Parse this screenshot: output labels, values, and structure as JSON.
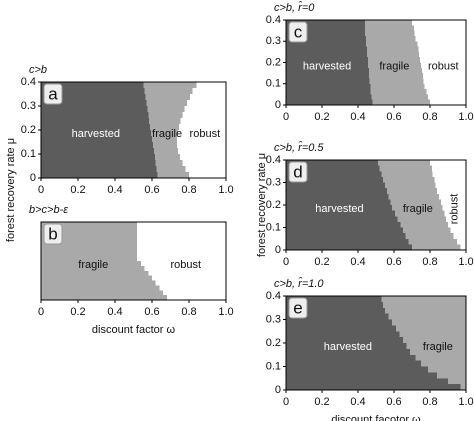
{
  "chart_data": [
    {
      "type": "region",
      "title": "c>b",
      "label": "a",
      "xlim": [
        0,
        1
      ],
      "ylim": [
        0,
        0.4
      ],
      "xticks": [
        0,
        0.2,
        0.4,
        0.6,
        0.8,
        {
          "value": 1,
          "label": "1.0"
        }
      ],
      "yticks": [
        0,
        0.1,
        0.2,
        0.3,
        0.4
      ],
      "ylabel": "forest recovery rate μ",
      "mu": [
        0,
        0.025,
        0.05,
        0.075,
        0.1,
        0.125,
        0.15,
        0.175,
        0.2,
        0.225,
        0.25,
        0.275,
        0.3,
        0.325,
        0.35,
        0.375
      ],
      "regions": [
        {
          "name": "harvested",
          "color": "#5c5c5c",
          "boundary": [
            0.63,
            0.625,
            0.62,
            0.615,
            0.61,
            0.605,
            0.6,
            0.595,
            0.59,
            0.585,
            0.58,
            0.575,
            0.57,
            0.565,
            0.56,
            0.555
          ]
        },
        {
          "name": "fragile",
          "color": "#a9a9a9",
          "boundary": [
            0.8,
            0.78,
            0.765,
            0.75,
            0.74,
            0.735,
            0.735,
            0.74,
            0.745,
            0.755,
            0.765,
            0.775,
            0.79,
            0.805,
            0.82,
            0.84
          ]
        },
        {
          "name": "robust",
          "color": "#ffffff"
        }
      ]
    },
    {
      "type": "region",
      "title": "b>c>b-ε",
      "label": "b",
      "xlim": [
        0,
        1
      ],
      "ylim": [
        0,
        0.4
      ],
      "xticks": [
        0,
        0.2,
        0.4,
        0.6,
        0.8,
        {
          "value": 1,
          "label": "1.0"
        }
      ],
      "xlabel": "discount factor ω",
      "mu": [
        0,
        0.025,
        0.05,
        0.075,
        0.1,
        0.125,
        0.15,
        0.175,
        0.2,
        0.225,
        0.25,
        0.275,
        0.3,
        0.325,
        0.35,
        0.375
      ],
      "regions": [
        {
          "name": "fragile",
          "color": "#a9a9a9",
          "boundary": [
            0.68,
            0.66,
            0.64,
            0.62,
            0.6,
            0.58,
            0.56,
            0.54,
            0.52,
            0.52,
            0.52,
            0.52,
            0.52,
            0.52,
            0.52,
            0.52
          ]
        },
        {
          "name": "robust",
          "color": "#ffffff"
        }
      ]
    },
    {
      "type": "region",
      "title": "c>b, r̂=0",
      "label": "c",
      "xlim": [
        0,
        1
      ],
      "ylim": [
        0,
        0.4
      ],
      "xticks": [
        0,
        0.2,
        0.4,
        0.6,
        0.8,
        {
          "value": 1,
          "label": "1.0"
        }
      ],
      "yticks": [
        0,
        0.1,
        0.2,
        0.3,
        0.4
      ],
      "ylabel": "forest recovery rate μ",
      "mu": [
        0,
        0.025,
        0.05,
        0.075,
        0.1,
        0.125,
        0.15,
        0.175,
        0.2,
        0.225,
        0.25,
        0.275,
        0.3,
        0.325,
        0.35,
        0.375
      ],
      "regions": [
        {
          "name": "harvested",
          "color": "#5c5c5c",
          "boundary": [
            0.48,
            0.475,
            0.47,
            0.47,
            0.465,
            0.46,
            0.46,
            0.455,
            0.455,
            0.45,
            0.45,
            0.445,
            0.445,
            0.44,
            0.44,
            0.44
          ]
        },
        {
          "name": "fragile",
          "color": "#a9a9a9",
          "boundary": [
            0.8,
            0.79,
            0.78,
            0.77,
            0.765,
            0.76,
            0.755,
            0.75,
            0.745,
            0.74,
            0.735,
            0.73,
            0.72,
            0.715,
            0.71,
            0.7
          ]
        },
        {
          "name": "robust",
          "color": "#ffffff"
        }
      ]
    },
    {
      "type": "region",
      "title": "c>b, r̂=0.5",
      "label": "d",
      "xlim": [
        0,
        1
      ],
      "ylim": [
        0,
        0.4
      ],
      "xticks": [
        0,
        0.2,
        0.4,
        0.6,
        0.8,
        {
          "value": 1,
          "label": "1.0"
        }
      ],
      "yticks": [
        0,
        0.1,
        0.2,
        0.3,
        0.4
      ],
      "mu": [
        0,
        0.025,
        0.05,
        0.075,
        0.1,
        0.125,
        0.15,
        0.175,
        0.2,
        0.225,
        0.25,
        0.275,
        0.3,
        0.325,
        0.35,
        0.375
      ],
      "regions": [
        {
          "name": "harvested",
          "color": "#5c5c5c",
          "boundary": [
            0.7,
            0.68,
            0.665,
            0.65,
            0.635,
            0.62,
            0.605,
            0.59,
            0.58,
            0.57,
            0.56,
            0.55,
            0.54,
            0.53,
            0.52,
            0.51
          ]
        },
        {
          "name": "fragile",
          "color": "#a9a9a9",
          "boundary": [
            0.97,
            0.95,
            0.93,
            0.915,
            0.9,
            0.89,
            0.88,
            0.87,
            0.86,
            0.85,
            0.84,
            0.83,
            0.825,
            0.815,
            0.81,
            0.8
          ]
        },
        {
          "name": "robust",
          "color": "#ffffff"
        }
      ]
    },
    {
      "type": "region",
      "title": "c>b, r̂=1.0",
      "label": "e",
      "xlim": [
        0,
        1
      ],
      "ylim": [
        0,
        0.4
      ],
      "xticks": [
        0,
        0.2,
        0.4,
        0.6,
        0.8,
        {
          "value": 1,
          "label": "1.0"
        }
      ],
      "yticks": [
        0,
        0.1,
        0.2,
        0.3,
        0.4
      ],
      "xlabel": "discount facotor ω",
      "mu": [
        0,
        0.025,
        0.05,
        0.075,
        0.1,
        0.125,
        0.15,
        0.175,
        0.2,
        0.225,
        0.25,
        0.275,
        0.3,
        0.325,
        0.35,
        0.375
      ],
      "regions": [
        {
          "name": "harvested",
          "color": "#5c5c5c",
          "boundary": [
            0.97,
            0.9,
            0.84,
            0.79,
            0.75,
            0.72,
            0.69,
            0.67,
            0.65,
            0.63,
            0.61,
            0.59,
            0.57,
            0.55,
            0.54,
            0.53
          ]
        },
        {
          "name": "fragile",
          "color": "#a9a9a9"
        }
      ]
    }
  ]
}
